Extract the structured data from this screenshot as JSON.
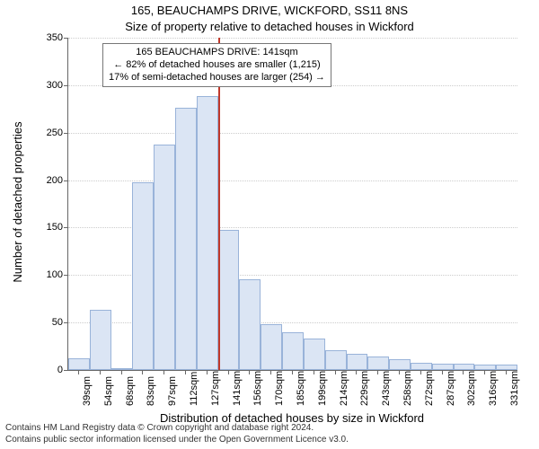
{
  "title": "165, BEAUCHAMPS DRIVE, WICKFORD, SS11 8NS",
  "subtitle": "Size of property relative to detached houses in Wickford",
  "ylabel": "Number of detached properties",
  "xlabel": "Distribution of detached houses by size in Wickford",
  "chart": {
    "type": "histogram",
    "ylim": [
      0,
      350
    ],
    "ytick_step": 50,
    "background_color": "#ffffff",
    "grid_color": "#cccccc",
    "axis_color": "#666666",
    "bar_fill": "#dbe5f4",
    "bar_border": "#99b3d9",
    "marker_color": "#c0392b",
    "marker_x_index": 7,
    "bar_width": 1.0,
    "title_fontsize": 13,
    "label_fontsize": 13,
    "tick_fontsize": 11,
    "categories": [
      "39sqm",
      "54sqm",
      "68sqm",
      "83sqm",
      "97sqm",
      "112sqm",
      "127sqm",
      "141sqm",
      "156sqm",
      "170sqm",
      "185sqm",
      "199sqm",
      "214sqm",
      "229sqm",
      "243sqm",
      "258sqm",
      "272sqm",
      "287sqm",
      "302sqm",
      "316sqm",
      "331sqm"
    ],
    "values": [
      12,
      63,
      0,
      198,
      237,
      276,
      289,
      148,
      96,
      48,
      40,
      33,
      21,
      17,
      14,
      11,
      8,
      7,
      7,
      6,
      6
    ]
  },
  "annotation": {
    "line1": "165 BEAUCHAMPS DRIVE: 141sqm",
    "line2": "← 82% of detached houses are smaller (1,215)",
    "line3": "17% of semi-detached houses are larger (254) →",
    "border_color": "#777777",
    "background_color": "#ffffff",
    "fontsize": 11
  },
  "footer": {
    "line1": "Contains HM Land Registry data © Crown copyright and database right 2024.",
    "line2": "Contains public sector information licensed under the Open Government Licence v3.0.",
    "fontsize": 10,
    "color": "#333333"
  }
}
